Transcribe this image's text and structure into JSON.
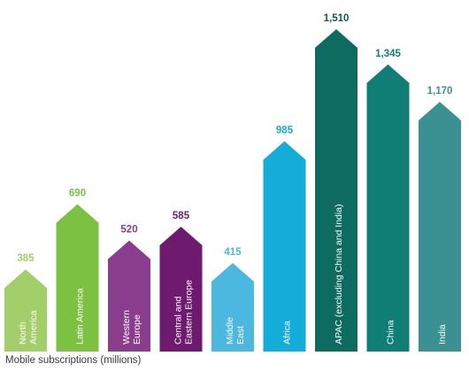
{
  "chart_data": {
    "type": "bar",
    "xlabel": "Mobile subscriptions (millions)",
    "categories": [
      [
        "North",
        "America"
      ],
      [
        "Latin America"
      ],
      [
        "Western",
        "Europe"
      ],
      [
        "Central and",
        "Eastern Europe"
      ],
      [
        "Middle",
        "East"
      ],
      [
        "Africa"
      ],
      [
        "APAC (excluding China and India)"
      ],
      [
        "China"
      ],
      [
        "India"
      ]
    ],
    "values": [
      385,
      690,
      520,
      585,
      415,
      985,
      1510,
      1345,
      1170
    ],
    "value_labels": [
      "385",
      "690",
      "520",
      "585",
      "415",
      "985",
      "1,510",
      "1,345",
      "1,170"
    ],
    "bar_colors": [
      "#a3cf6b",
      "#7dc143",
      "#8a3d8c",
      "#6e1a6e",
      "#4cb7df",
      "#14acd8",
      "#0d6b5f",
      "#117e76",
      "#3b9191"
    ],
    "label_colors": [
      "#a3cf6b",
      "#7dc143",
      "#8a3d8c",
      "#6e1a6e",
      "#4cb7df",
      "#14acd8",
      "#0d5b50",
      "#117e76",
      "#3b9191"
    ],
    "bar_shape": "arrow-up",
    "ylim": [
      0,
      1510
    ],
    "grid": false,
    "legend": "none"
  }
}
